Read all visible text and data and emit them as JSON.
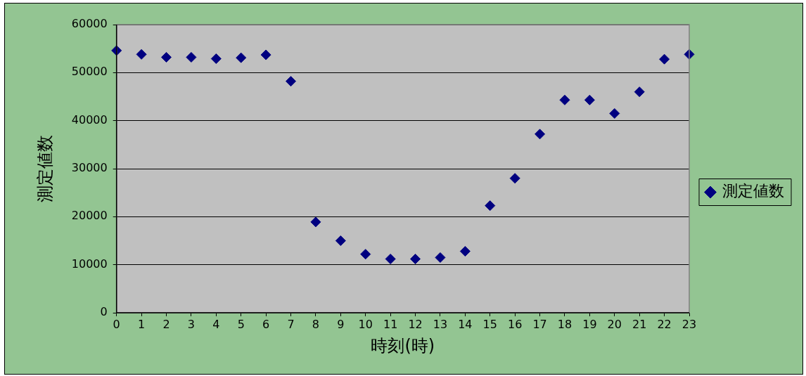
{
  "chart_data": {
    "type": "scatter",
    "xlabel": "時刻(時)",
    "ylabel": "測定値数",
    "x": [
      0,
      1,
      2,
      3,
      4,
      5,
      6,
      7,
      8,
      9,
      10,
      11,
      12,
      13,
      14,
      15,
      16,
      17,
      18,
      19,
      20,
      21,
      22,
      23
    ],
    "series": [
      {
        "name": "測定値数",
        "color": "#000080",
        "values": [
          54600,
          53800,
          53200,
          53200,
          52900,
          53100,
          53700,
          48200,
          18900,
          15000,
          12200,
          11200,
          11200,
          11500,
          12800,
          22300,
          28000,
          37200,
          44300,
          44300,
          41500,
          46000,
          52800,
          53800
        ]
      }
    ],
    "xlim": [
      0,
      23
    ],
    "xticks": [
      0,
      1,
      2,
      3,
      4,
      5,
      6,
      7,
      8,
      9,
      10,
      11,
      12,
      13,
      14,
      15,
      16,
      17,
      18,
      19,
      20,
      21,
      22,
      23
    ],
    "ylim": [
      0,
      60000
    ],
    "yticks": [
      0,
      10000,
      20000,
      30000,
      40000,
      50000,
      60000
    ],
    "grid": "y",
    "legend": "right",
    "marker": "diamond"
  }
}
